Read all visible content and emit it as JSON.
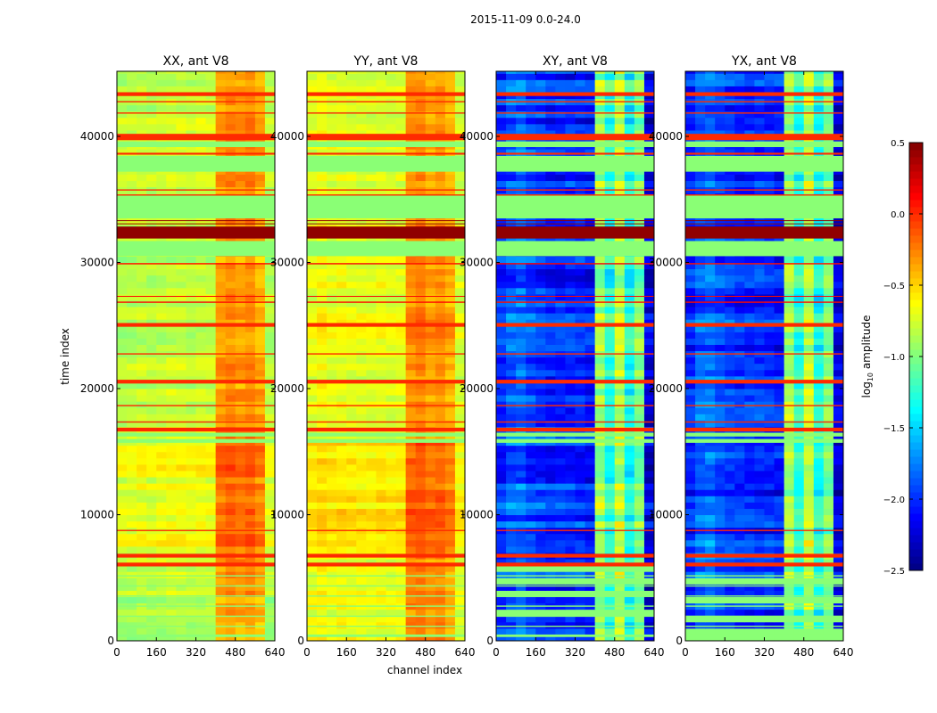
{
  "chart_data": {
    "type": "heatmap",
    "suptitle": "2015-11-09 0.0-24.0",
    "xlabel": "channel index",
    "ylabel": "time index",
    "xlim": [
      0,
      640
    ],
    "ylim": [
      0,
      45160
    ],
    "xticks": [
      0,
      160,
      320,
      480,
      640
    ],
    "yticks": [
      0,
      10000,
      20000,
      30000,
      40000
    ],
    "colorbar": {
      "label_main": "log",
      "label_sub": "10",
      "label_rest": " amplitude",
      "range": [
        -2.5,
        0.5
      ],
      "ticks": [
        "0.5",
        "0.0",
        "−0.5",
        "−1.0",
        "−1.5",
        "−2.0",
        "−2.5"
      ],
      "tick_values": [
        0.5,
        0.0,
        -0.5,
        -1.0,
        -1.5,
        -2.0,
        -2.5
      ],
      "colormap": "jet"
    },
    "channel_bin_width": 40,
    "time_bin_width": 500,
    "panels": [
      {
        "title": "XX, ant V8",
        "channel_profile": [
          -0.85,
          -0.85,
          -0.82,
          -0.85,
          -0.82,
          -0.8,
          -0.8,
          -0.82,
          -0.8,
          -0.8,
          -0.35,
          -0.3,
          -0.35,
          -0.3,
          -0.4,
          -0.85
        ],
        "noise": 0.12
      },
      {
        "title": "YY, ant V8",
        "channel_profile": [
          -0.7,
          -0.65,
          -0.7,
          -0.68,
          -0.7,
          -0.7,
          -0.72,
          -0.7,
          -0.72,
          -0.7,
          -0.3,
          -0.25,
          -0.35,
          -0.3,
          -0.4,
          -0.75
        ],
        "noise": 0.12
      },
      {
        "title": "XY, ant V8",
        "channel_profile": [
          -2.0,
          -1.85,
          -1.8,
          -1.9,
          -1.95,
          -2.0,
          -2.0,
          -2.0,
          -2.0,
          -2.05,
          -0.9,
          -1.25,
          -0.8,
          -1.3,
          -1.0,
          -2.2
        ],
        "noise": 0.2
      },
      {
        "title": "YX, ant V8",
        "channel_profile": [
          -2.0,
          -1.85,
          -1.8,
          -1.9,
          -1.95,
          -2.0,
          -2.0,
          -2.0,
          -2.0,
          -2.05,
          -0.9,
          -1.25,
          -0.8,
          -1.3,
          -1.0,
          -2.2
        ],
        "noise": 0.2
      }
    ],
    "flagged_bands": [
      [
        43200,
        43500,
        0.0
      ],
      [
        42700,
        42800,
        0.0
      ],
      [
        41800,
        41900,
        0.0
      ],
      [
        39700,
        40200,
        0.0
      ],
      [
        39150,
        39600,
        -0.97
      ],
      [
        38550,
        38700,
        0.0
      ],
      [
        37200,
        38450,
        -0.97
      ],
      [
        35700,
        35800,
        0.0
      ],
      [
        35300,
        35400,
        0.0
      ],
      [
        33500,
        35300,
        -0.97
      ],
      [
        33300,
        33350,
        0.45
      ],
      [
        33050,
        33100,
        0.45
      ],
      [
        31900,
        32850,
        0.45
      ],
      [
        30500,
        31700,
        -0.97
      ],
      [
        29850,
        29950,
        0.1
      ],
      [
        27300,
        27350,
        0.1
      ],
      [
        26800,
        26900,
        0.1
      ],
      [
        24900,
        25200,
        0.0
      ],
      [
        22700,
        22800,
        0.0
      ],
      [
        20400,
        20700,
        0.0
      ],
      [
        18600,
        18700,
        0.0
      ],
      [
        17300,
        17400,
        0.0
      ],
      [
        16600,
        16900,
        0.0
      ],
      [
        16200,
        16500,
        -0.97
      ],
      [
        15700,
        16000,
        -0.97
      ],
      [
        8700,
        8800,
        0.0
      ],
      [
        6600,
        6900,
        0.0
      ],
      [
        5900,
        6200,
        0.0
      ],
      [
        5100,
        5200,
        -0.97
      ],
      [
        4300,
        4400,
        -0.97
      ],
      [
        3500,
        3600,
        -0.97
      ],
      [
        2700,
        2800,
        -0.97
      ],
      [
        1900,
        2000,
        -0.97
      ],
      [
        1100,
        1200,
        -0.97
      ],
      [
        300,
        500,
        -0.97
      ]
    ]
  }
}
